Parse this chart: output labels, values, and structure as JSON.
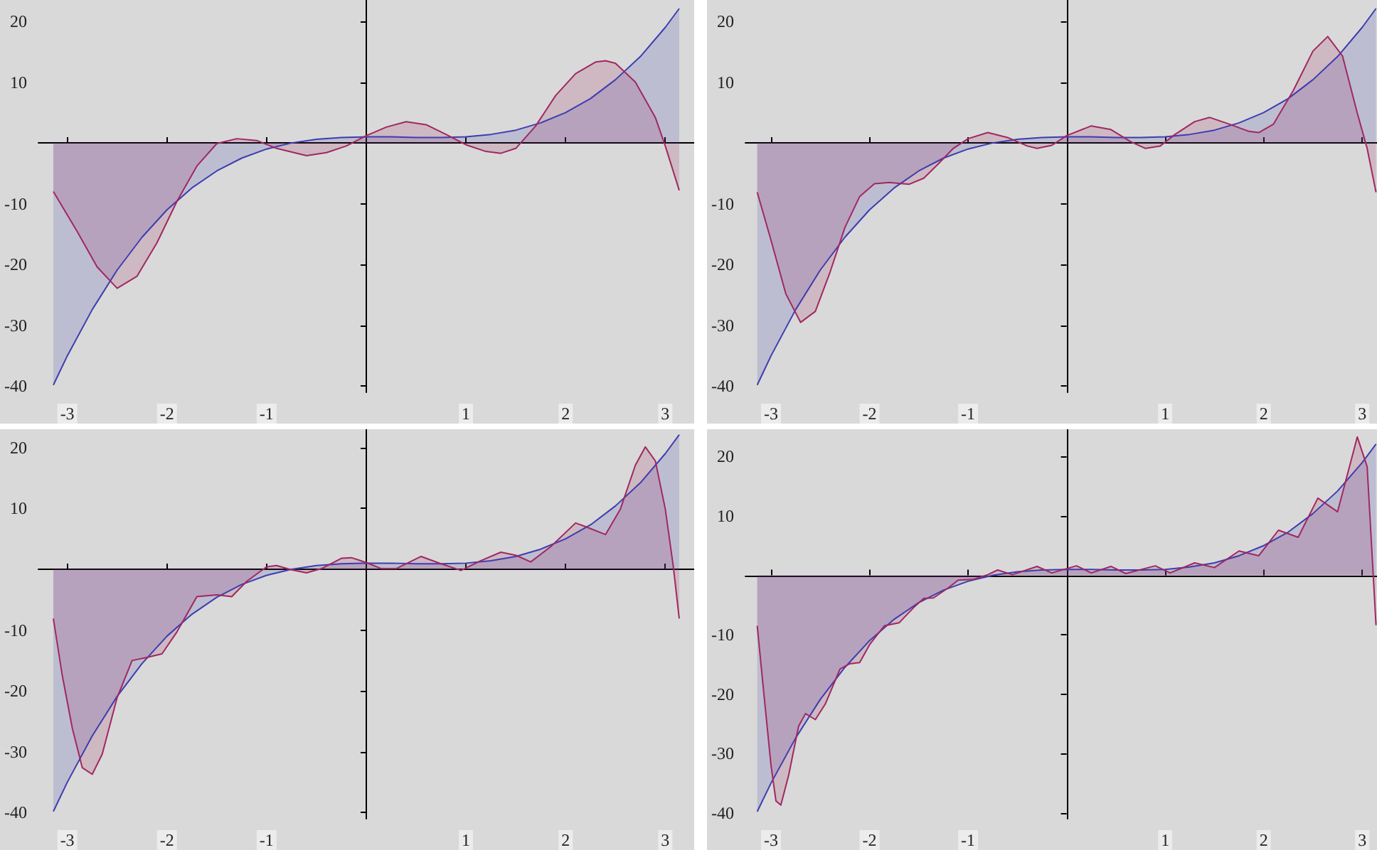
{
  "chart_data": [
    {
      "type": "area",
      "xlim": [
        -3.29,
        3.29
      ],
      "ylim": [
        -41,
        23.5
      ],
      "xticks": [
        -3,
        -2,
        -1,
        1,
        2,
        3
      ],
      "yticks": [
        -40,
        -30,
        -20,
        -10,
        10,
        20
      ],
      "series": [
        {
          "color": "#3d3db0",
          "x": [
            -3.14,
            -3,
            -2.75,
            -2.5,
            -2.25,
            -2,
            -1.75,
            -1.5,
            -1.25,
            -1,
            -0.75,
            -0.5,
            -0.25,
            0,
            0.25,
            0.5,
            0.75,
            1,
            1.25,
            1.5,
            1.75,
            2,
            2.25,
            2.5,
            2.75,
            3,
            3.14
          ],
          "values": [
            -39.8,
            -35,
            -27.4,
            -20.9,
            -15.5,
            -11,
            -7.4,
            -4.6,
            -2.5,
            -1,
            0,
            0.6,
            0.9,
            1,
            1,
            0.9,
            0.9,
            1,
            1.4,
            2.1,
            3.3,
            5,
            7.3,
            10.4,
            14.2,
            19,
            22.1
          ]
        },
        {
          "color": "#a02860",
          "x": [
            -3.14,
            -2.9,
            -2.7,
            -2.5,
            -2.3,
            -2.1,
            -1.9,
            -1.7,
            -1.5,
            -1.3,
            -1.1,
            -0.9,
            -0.6,
            -0.4,
            -0.2,
            0,
            0.2,
            0.4,
            0.6,
            0.8,
            1,
            1.2,
            1.35,
            1.5,
            1.7,
            1.9,
            2.1,
            2.3,
            2.4,
            2.5,
            2.7,
            2.9,
            3,
            3.14
          ],
          "values": [
            -8,
            -14.6,
            -20.4,
            -23.9,
            -21.9,
            -16.4,
            -9.6,
            -3.8,
            -0.1,
            0.7,
            0.4,
            -0.9,
            -2.1,
            -1.6,
            -0.5,
            1.2,
            2.6,
            3.5,
            3,
            1.4,
            -0.3,
            -1.4,
            -1.7,
            -0.9,
            2.8,
            7.8,
            11.4,
            13.3,
            13.5,
            13.1,
            10,
            4.2,
            -0.5,
            -7.8
          ]
        }
      ]
    },
    {
      "type": "area",
      "xlim": [
        -3.26,
        3.15
      ],
      "ylim": [
        -41,
        23.5
      ],
      "xticks": [
        -3,
        -2,
        -1,
        1,
        2,
        3
      ],
      "yticks": [
        -40,
        -30,
        -20,
        -10,
        10,
        20
      ],
      "series": [
        {
          "color": "#3d3db0",
          "x": [
            -3.14,
            -3,
            -2.75,
            -2.5,
            -2.25,
            -2,
            -1.75,
            -1.5,
            -1.25,
            -1,
            -0.75,
            -0.5,
            -0.25,
            0,
            0.25,
            0.5,
            0.75,
            1,
            1.25,
            1.5,
            1.75,
            2,
            2.25,
            2.5,
            2.75,
            3,
            3.14
          ],
          "values": [
            -39.8,
            -35,
            -27.4,
            -20.9,
            -15.5,
            -11,
            -7.4,
            -4.6,
            -2.5,
            -1,
            0,
            0.6,
            0.9,
            1,
            1,
            0.9,
            0.9,
            1,
            1.4,
            2.1,
            3.3,
            5,
            7.3,
            10.4,
            14.2,
            19,
            22.1
          ]
        },
        {
          "color": "#a02860",
          "x": [
            -3.14,
            -3,
            -2.85,
            -2.7,
            -2.55,
            -2.4,
            -2.25,
            -2.1,
            -1.95,
            -1.8,
            -1.6,
            -1.45,
            -1.3,
            -1.15,
            -1,
            -0.8,
            -0.6,
            -0.4,
            -0.3,
            -0.15,
            0,
            0.25,
            0.45,
            0.65,
            0.8,
            0.95,
            1.1,
            1.3,
            1.45,
            1.65,
            1.85,
            1.95,
            2.1,
            2.3,
            2.5,
            2.65,
            2.8,
            2.95,
            3.05,
            3.14
          ],
          "values": [
            -8.1,
            -16,
            -24.8,
            -29.5,
            -27.7,
            -21.2,
            -13.9,
            -8.8,
            -6.7,
            -6.5,
            -6.8,
            -5.8,
            -3.4,
            -0.9,
            0.7,
            1.7,
            0.9,
            -0.5,
            -0.9,
            -0.4,
            1.2,
            2.8,
            2.2,
            0.2,
            -0.9,
            -0.5,
            1.4,
            3.5,
            4.2,
            3.1,
            1.9,
            1.7,
            3.1,
            8.6,
            15.1,
            17.5,
            14.3,
            4.9,
            -0.9,
            -8.1
          ]
        }
      ]
    },
    {
      "type": "area",
      "xlim": [
        -3.29,
        3.29
      ],
      "ylim": [
        -41,
        23
      ],
      "xticks": [
        -3,
        -2,
        -1,
        1,
        2,
        3
      ],
      "yticks": [
        -40,
        -30,
        -20,
        -10,
        10,
        20
      ],
      "series": [
        {
          "color": "#3d3db0",
          "x": [
            -3.14,
            -3,
            -2.75,
            -2.5,
            -2.25,
            -2,
            -1.75,
            -1.5,
            -1.25,
            -1,
            -0.75,
            -0.5,
            -0.25,
            0,
            0.25,
            0.5,
            0.75,
            1,
            1.25,
            1.5,
            1.75,
            2,
            2.25,
            2.5,
            2.75,
            3,
            3.14
          ],
          "values": [
            -39.8,
            -35,
            -27.4,
            -20.9,
            -15.5,
            -11,
            -7.4,
            -4.6,
            -2.5,
            -1,
            0,
            0.6,
            0.9,
            1,
            1,
            0.9,
            0.9,
            1,
            1.4,
            2.1,
            3.3,
            5,
            7.3,
            10.4,
            14.2,
            19,
            22.1
          ]
        },
        {
          "color": "#a02860",
          "x": [
            -3.14,
            -3.05,
            -2.95,
            -2.85,
            -2.75,
            -2.65,
            -2.5,
            -2.35,
            -2.2,
            -2.05,
            -1.9,
            -1.7,
            -1.5,
            -1.35,
            -1.2,
            -1,
            -0.9,
            -0.75,
            -0.6,
            -0.45,
            -0.25,
            -0.15,
            0,
            0.15,
            0.3,
            0.55,
            0.75,
            0.95,
            1.15,
            1.35,
            1.5,
            1.65,
            1.85,
            2.1,
            2.2,
            2.4,
            2.55,
            2.7,
            2.8,
            2.9,
            3,
            3.08,
            3.14
          ],
          "values": [
            -8.1,
            -17.5,
            -26.1,
            -32.6,
            -33.7,
            -30.4,
            -21.1,
            -15,
            -14.5,
            -13.9,
            -10.3,
            -4.5,
            -4.2,
            -4.5,
            -2,
            0.4,
            0.6,
            -0.1,
            -0.6,
            0.1,
            1.8,
            1.9,
            1.1,
            0.1,
            0.1,
            2.1,
            0.9,
            -0.2,
            1.4,
            2.8,
            2.3,
            1.2,
            3.7,
            7.6,
            7,
            5.7,
            9.9,
            17.1,
            20.1,
            17.8,
            9.9,
            0.5,
            -8.1
          ]
        }
      ]
    },
    {
      "type": "area",
      "xlim": [
        -3.26,
        3.15
      ],
      "ylim": [
        -41,
        24.6
      ],
      "xticks": [
        -3,
        -2,
        -1,
        1,
        2,
        3
      ],
      "yticks": [
        -40,
        -30,
        -20,
        -10,
        10,
        20
      ],
      "series": [
        {
          "color": "#3d3db0",
          "x": [
            -3.14,
            -3,
            -2.75,
            -2.5,
            -2.25,
            -2,
            -1.75,
            -1.5,
            -1.25,
            -1,
            -0.75,
            -0.5,
            -0.25,
            0,
            0.25,
            0.5,
            0.75,
            1,
            1.25,
            1.5,
            1.75,
            2,
            2.25,
            2.5,
            2.75,
            3,
            3.14
          ],
          "values": [
            -39.8,
            -35,
            -27.4,
            -20.9,
            -15.5,
            -11,
            -7.4,
            -4.6,
            -2.5,
            -1,
            0,
            0.6,
            0.9,
            1,
            1,
            0.9,
            0.9,
            1,
            1.4,
            2.1,
            3.3,
            5,
            7.3,
            10.4,
            14.2,
            19,
            22.1
          ]
        },
        {
          "color": "#a02860",
          "x": [
            -3.14,
            -3.08,
            -3,
            -2.95,
            -2.9,
            -2.82,
            -2.72,
            -2.65,
            -2.55,
            -2.45,
            -2.3,
            -2.2,
            -2.1,
            -2,
            -1.85,
            -1.7,
            -1.55,
            -1.45,
            -1.35,
            -1.2,
            -1.1,
            -0.95,
            -0.8,
            -0.7,
            -0.55,
            -0.3,
            -0.15,
            0.1,
            0.25,
            0.45,
            0.6,
            0.9,
            1.05,
            1.3,
            1.5,
            1.75,
            1.95,
            2.15,
            2.35,
            2.55,
            2.75,
            2.95,
            3.05,
            3.1,
            3.14
          ],
          "values": [
            -8.5,
            -18.7,
            -32,
            -38,
            -38.7,
            -33.6,
            -25.4,
            -23.3,
            -24.3,
            -21.7,
            -15.8,
            -14.9,
            -14.7,
            -11.7,
            -8.5,
            -8,
            -5.4,
            -3.9,
            -3.8,
            -2.1,
            -0.8,
            -0.7,
            0.1,
            0.9,
            0.1,
            1.5,
            0.4,
            1.6,
            0.4,
            1.5,
            0.3,
            1.6,
            0.4,
            2.1,
            1.3,
            4.1,
            3.3,
            7.6,
            6.4,
            13,
            10.7,
            23.3,
            18.3,
            3.5,
            -8.4
          ]
        }
      ]
    }
  ]
}
